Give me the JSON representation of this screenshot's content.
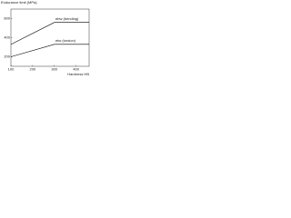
{
  "chart_data": {
    "type": "line",
    "y_label": "Endurance limit (MPa)",
    "x_label": "Hardness HB",
    "x": [
      100,
      300,
      460
    ],
    "series": [
      {
        "name": "σbw (bending)",
        "color": "#000000",
        "values": [
          330,
          560,
          560
        ]
      },
      {
        "name": "σtw (torsion)",
        "color": "#000000",
        "values": [
          200,
          330,
          330
        ]
      }
    ],
    "xlim": [
      100,
      460
    ],
    "xticks": [
      100,
      200,
      300,
      400
    ],
    "ylim": [
      100,
      700
    ],
    "yticks": [
      200,
      400,
      600
    ],
    "grid": false
  }
}
